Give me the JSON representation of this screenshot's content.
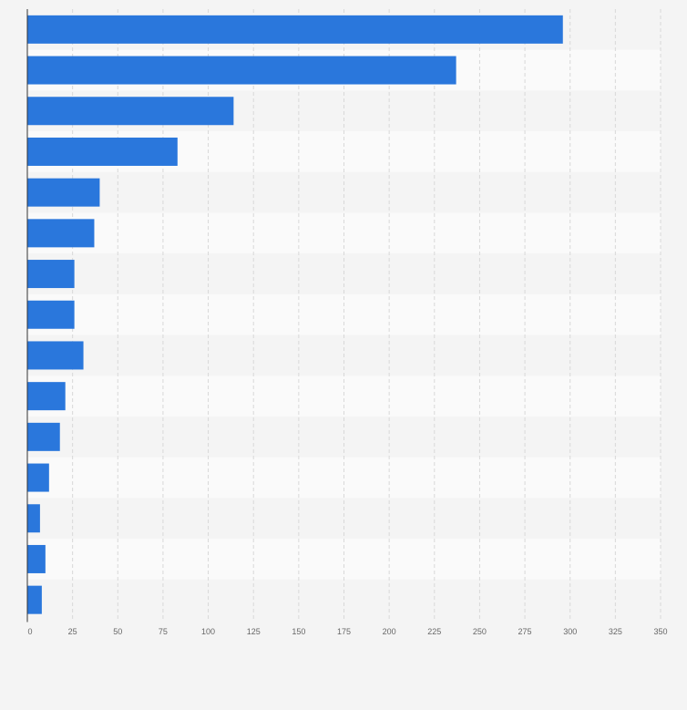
{
  "chart_data": {
    "type": "bar",
    "orientation": "horizontal",
    "values": [
      296,
      237,
      114,
      83,
      40,
      37,
      26,
      26,
      31,
      21,
      18,
      12,
      7,
      10,
      8
    ],
    "xlim": [
      0,
      350
    ],
    "x_ticks": [
      0,
      25,
      50,
      75,
      100,
      125,
      150,
      175,
      200,
      225,
      250,
      275,
      300,
      325,
      350
    ],
    "x_tick_labels": [
      "0",
      "25",
      "50",
      "75",
      "100",
      "125",
      "150",
      "175",
      "200",
      "225",
      "250",
      "275",
      "300",
      "325",
      "350"
    ],
    "grid": true,
    "legend": "none",
    "bar_color": "#2a77dc",
    "band_colors": [
      "#f4f4f4",
      "#fafafa"
    ]
  }
}
